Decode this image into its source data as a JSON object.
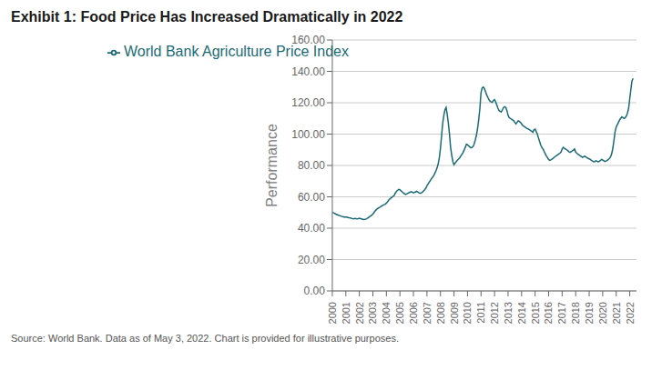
{
  "chart_data": {
    "type": "line",
    "title": "Exhibit 1: Food Price Has Increased Dramatically in 2022",
    "y_label": "Performance",
    "annotations": [
      "Source: World Bank.  Data as of May 3, 2022.  Chart is provided for illustrative purposes."
    ],
    "legend": "upper left",
    "grid": "y",
    "xlim": [
      2000,
      2022.5
    ],
    "xticks": [
      2000,
      2001,
      2002,
      2003,
      2004,
      2005,
      2006,
      2007,
      2008,
      2009,
      2010,
      2011,
      2012,
      2013,
      2014,
      2015,
      2016,
      2017,
      2018,
      2019,
      2020,
      2021,
      2022
    ],
    "ylim": [
      0,
      160
    ],
    "yticks": [
      {
        "value": 0,
        "label": "0.00"
      },
      {
        "value": 20,
        "label": "20.00"
      },
      {
        "value": 40,
        "label": "40.00"
      },
      {
        "value": 60,
        "label": "60.00"
      },
      {
        "value": 80,
        "label": "80.00"
      },
      {
        "value": 100,
        "label": "100.00"
      },
      {
        "value": 120,
        "label": "120.00"
      },
      {
        "value": 140,
        "label": "140.00"
      },
      {
        "value": 160,
        "label": "160.00"
      }
    ],
    "x": [
      2000,
      2000.0833333333,
      2000.1666666667,
      2000.25,
      2000.3333333333,
      2000.4166666667,
      2000.5,
      2000.5833333333,
      2000.6666666667,
      2000.75,
      2000.8333333333,
      2000.9166666667,
      2001,
      2001.0833333333,
      2001.1666666667,
      2001.25,
      2001.3333333333,
      2001.4166666667,
      2001.5,
      2001.5833333333,
      2001.6666666667,
      2001.75,
      2001.8333333333,
      2001.9166666667,
      2002,
      2002.0833333333,
      2002.1666666667,
      2002.25,
      2002.3333333333,
      2002.4166666667,
      2002.5,
      2002.5833333333,
      2002.6666666667,
      2002.75,
      2002.8333333333,
      2002.9166666667,
      2003,
      2003.0833333333,
      2003.1666666667,
      2003.25,
      2003.3333333333,
      2003.4166666667,
      2003.5,
      2003.5833333333,
      2003.6666666667,
      2003.75,
      2003.8333333333,
      2003.9166666667,
      2004,
      2004.0833333333,
      2004.1666666667,
      2004.25,
      2004.3333333333,
      2004.4166666667,
      2004.5,
      2004.5833333333,
      2004.6666666667,
      2004.75,
      2004.8333333333,
      2004.9166666667,
      2005,
      2005.0833333333,
      2005.1666666667,
      2005.25,
      2005.3333333333,
      2005.4166666667,
      2005.5,
      2005.5833333333,
      2005.6666666667,
      2005.75,
      2005.8333333333,
      2005.9166666667,
      2006,
      2006.0833333333,
      2006.1666666667,
      2006.25,
      2006.3333333333,
      2006.4166666667,
      2006.5,
      2006.5833333333,
      2006.6666666667,
      2006.75,
      2006.8333333333,
      2006.9166666667,
      2007,
      2007.0833333333,
      2007.1666666667,
      2007.25,
      2007.3333333333,
      2007.4166666667,
      2007.5,
      2007.5833333333,
      2007.6666666667,
      2007.75,
      2007.8333333333,
      2007.9166666667,
      2008,
      2008.0833333333,
      2008.1666666667,
      2008.25,
      2008.3333333333,
      2008.4166666667,
      2008.5,
      2008.5833333333,
      2008.6666666667,
      2008.75,
      2008.8333333333,
      2008.9166666667,
      2009,
      2009.0833333333,
      2009.1666666667,
      2009.25,
      2009.3333333333,
      2009.4166666667,
      2009.5,
      2009.5833333333,
      2009.6666666667,
      2009.75,
      2009.8333333333,
      2009.9166666667,
      2010,
      2010.0833333333,
      2010.1666666667,
      2010.25,
      2010.3333333333,
      2010.4166666667,
      2010.5,
      2010.5833333333,
      2010.6666666667,
      2010.75,
      2010.8333333333,
      2010.9166666667,
      2011,
      2011.0833333333,
      2011.1666666667,
      2011.25,
      2011.3333333333,
      2011.4166666667,
      2011.5,
      2011.5833333333,
      2011.6666666667,
      2011.75,
      2011.8333333333,
      2011.9166666667,
      2012,
      2012.0833333333,
      2012.1666666667,
      2012.25,
      2012.3333333333,
      2012.4166666667,
      2012.5,
      2012.5833333333,
      2012.6666666667,
      2012.75,
      2012.8333333333,
      2012.9166666667,
      2013,
      2013.0833333333,
      2013.1666666667,
      2013.25,
      2013.3333333333,
      2013.4166666667,
      2013.5,
      2013.5833333333,
      2013.6666666667,
      2013.75,
      2013.8333333333,
      2013.9166666667,
      2014,
      2014.0833333333,
      2014.1666666667,
      2014.25,
      2014.3333333333,
      2014.4166666667,
      2014.5,
      2014.5833333333,
      2014.6666666667,
      2014.75,
      2014.8333333333,
      2014.9166666667,
      2015,
      2015.0833333333,
      2015.1666666667,
      2015.25,
      2015.3333333333,
      2015.4166666667,
      2015.5,
      2015.5833333333,
      2015.6666666667,
      2015.75,
      2015.8333333333,
      2015.9166666667,
      2016,
      2016.0833333333,
      2016.1666666667,
      2016.25,
      2016.3333333333,
      2016.4166666667,
      2016.5,
      2016.5833333333,
      2016.6666666667,
      2016.75,
      2016.8333333333,
      2016.9166666667,
      2017,
      2017.0833333333,
      2017.1666666667,
      2017.25,
      2017.3333333333,
      2017.4166666667,
      2017.5,
      2017.5833333333,
      2017.6666666667,
      2017.75,
      2017.8333333333,
      2017.9166666667,
      2018,
      2018.0833333333,
      2018.1666666667,
      2018.25,
      2018.3333333333,
      2018.4166666667,
      2018.5,
      2018.5833333333,
      2018.6666666667,
      2018.75,
      2018.8333333333,
      2018.9166666667,
      2019,
      2019.0833333333,
      2019.1666666667,
      2019.25,
      2019.3333333333,
      2019.4166666667,
      2019.5,
      2019.5833333333,
      2019.6666666667,
      2019.75,
      2019.8333333333,
      2019.9166666667,
      2020,
      2020.0833333333,
      2020.1666666667,
      2020.25,
      2020.3333333333,
      2020.4166666667,
      2020.5,
      2020.5833333333,
      2020.6666666667,
      2020.75,
      2020.8333333333,
      2020.9166666667,
      2021,
      2021.0833333333,
      2021.1666666667,
      2021.25,
      2021.3333333333,
      2021.4166666667,
      2021.5,
      2021.5833333333,
      2021.6666666667,
      2021.75,
      2021.8333333333,
      2021.9166666667,
      2022,
      2022.0833333333,
      2022.1666666667,
      2022.25
    ],
    "series": [
      {
        "name": "World Bank Agriculture Price Index",
        "color": "#1a6b75",
        "values": [
          50.2,
          49.8,
          49.5,
          49.0,
          48.7,
          48.4,
          48.1,
          47.9,
          47.6,
          47.4,
          47.2,
          47.0,
          47.2,
          47.0,
          46.8,
          46.6,
          46.5,
          46.3,
          46.1,
          46.0,
          46.2,
          46.1,
          46.0,
          46.1,
          46.3,
          46.1,
          45.9,
          45.7,
          45.5,
          45.6,
          45.9,
          46.3,
          46.8,
          47.3,
          47.8,
          48.3,
          49.0,
          50.0,
          51.0,
          51.8,
          52.4,
          52.9,
          53.3,
          53.8,
          54.2,
          54.7,
          55.0,
          55.3,
          56.0,
          56.8,
          57.8,
          58.5,
          59.2,
          59.8,
          60.3,
          61.0,
          62.5,
          63.5,
          64.2,
          64.7,
          64.5,
          63.8,
          63.2,
          62.5,
          62.0,
          61.5,
          61.8,
          62.2,
          62.6,
          63.0,
          63.3,
          63.0,
          62.5,
          62.8,
          63.2,
          63.5,
          63.0,
          62.5,
          62.2,
          62.5,
          63.0,
          63.8,
          64.5,
          65.5,
          67.0,
          68.2,
          69.3,
          70.4,
          71.5,
          72.5,
          73.5,
          75.0,
          76.5,
          78.5,
          81.0,
          85.0,
          91.0,
          99.0,
          107.0,
          112.0,
          115.5,
          117.0,
          112.5,
          107.0,
          100.0,
          91.5,
          86.5,
          82.5,
          80.5,
          81.5,
          82.5,
          83.3,
          84.0,
          84.8,
          86.0,
          87.0,
          88.2,
          89.8,
          91.5,
          93.5,
          93.2,
          92.5,
          91.8,
          91.2,
          91.5,
          92.2,
          93.8,
          96.5,
          99.5,
          104.0,
          109.5,
          116.5,
          126.5,
          129.5,
          130.0,
          129.0,
          127.0,
          125.0,
          123.5,
          122.0,
          121.0,
          120.5,
          120.2,
          121.5,
          122.0,
          120.5,
          118.5,
          116.5,
          115.0,
          114.5,
          114.2,
          115.5,
          117.0,
          117.5,
          117.0,
          115.0,
          112.0,
          110.5,
          110.0,
          109.5,
          109.0,
          108.5,
          107.5,
          106.5,
          107.5,
          108.5,
          108.0,
          107.5,
          106.5,
          105.5,
          105.0,
          104.5,
          104.0,
          103.5,
          103.2,
          102.8,
          102.3,
          101.8,
          101.2,
          102.8,
          103.2,
          101.5,
          100.0,
          97.5,
          95.2,
          93.0,
          91.5,
          90.5,
          89.0,
          87.5,
          86.0,
          85.0,
          83.8,
          83.2,
          83.5,
          84.0,
          84.5,
          85.2,
          85.8,
          86.3,
          86.8,
          87.3,
          87.8,
          88.5,
          90.5,
          91.5,
          91.0,
          90.5,
          90.0,
          89.5,
          88.8,
          88.3,
          88.8,
          89.3,
          89.8,
          90.5,
          88.5,
          87.8,
          87.2,
          86.7,
          86.2,
          85.7,
          85.2,
          85.5,
          86.0,
          85.5,
          85.0,
          84.5,
          84.2,
          83.8,
          83.2,
          82.8,
          82.3,
          82.5,
          83.0,
          82.7,
          82.3,
          82.7,
          83.2,
          83.8,
          83.5,
          83.0,
          82.5,
          82.8,
          83.2,
          83.8,
          84.5,
          85.5,
          87.5,
          91.0,
          96.0,
          101.5,
          104.5,
          106.0,
          107.5,
          109.0,
          110.0,
          111.0,
          110.5,
          110.0,
          110.5,
          111.5,
          113.5,
          116.5,
          122.5,
          128.5,
          134.0,
          135.5
        ]
      }
    ]
  }
}
